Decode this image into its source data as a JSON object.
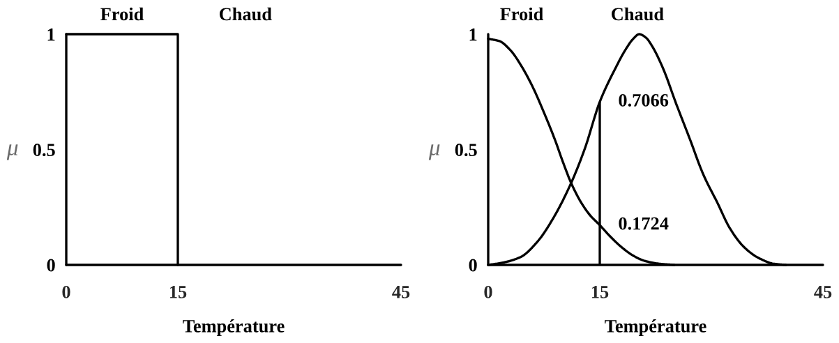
{
  "chart_data": [
    {
      "type": "step",
      "xlabel": "Température",
      "ylabel": "μ",
      "xlim": [
        0,
        45
      ],
      "xticks": [
        0,
        15,
        45
      ],
      "ylim": [
        0,
        1
      ],
      "yticks": [
        0,
        0.5,
        1
      ],
      "series": [
        {
          "name": "Froid",
          "color": "#000000",
          "x": [
            0,
            15
          ],
          "values": [
            1,
            0
          ]
        }
      ],
      "annotations": [
        "Chaud"
      ]
    },
    {
      "type": "line",
      "xlabel": "Température",
      "ylabel": "μ",
      "xlim": [
        0,
        45
      ],
      "xticks": [
        0,
        15,
        45
      ],
      "ylim": [
        0,
        1
      ],
      "yticks": [
        0,
        0.5,
        1
      ],
      "series": [
        {
          "name": "Froid",
          "color": "#000000",
          "x": [
            0,
            1.5,
            3,
            4.5,
            6,
            7.5,
            9,
            10,
            11.15,
            12.5,
            13.7,
            15,
            16.5,
            18,
            19.5,
            21,
            23,
            25
          ],
          "values": [
            0.98,
            0.97,
            0.93,
            0.86,
            0.77,
            0.66,
            0.54,
            0.45,
            0.355,
            0.27,
            0.215,
            0.1724,
            0.12,
            0.075,
            0.04,
            0.018,
            0.005,
            0
          ]
        },
        {
          "name": "Chaud",
          "color": "#000000",
          "x": [
            0,
            2,
            4.4,
            6.6,
            8.7,
            11.15,
            13,
            15,
            17.1,
            18.5,
            19.5,
            20.3,
            21.2,
            22,
            23.5,
            25.25,
            27.1,
            28.9,
            30.8,
            32.5,
            34.4,
            36.3,
            38.4,
            40
          ],
          "values": [
            0,
            0.01,
            0.035,
            0.1,
            0.2,
            0.355,
            0.505,
            0.7066,
            0.852,
            0.935,
            0.98,
            1,
            0.985,
            0.95,
            0.852,
            0.7,
            0.546,
            0.393,
            0.27,
            0.158,
            0.077,
            0.031,
            0.005,
            0
          ]
        }
      ],
      "ref_lines": [
        {
          "axis": "x",
          "value": 15,
          "color": "#000000"
        }
      ],
      "annotations": [
        {
          "text": "0.7066",
          "x": 15,
          "y": 0.7066
        },
        {
          "text": "0.1724",
          "x": 15,
          "y": 0.1724
        }
      ]
    }
  ]
}
